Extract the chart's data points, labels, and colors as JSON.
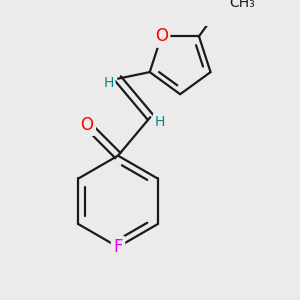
{
  "background_color": "#ebebeb",
  "bond_color": "#1a1a1a",
  "bond_width": 1.6,
  "atom_colors": {
    "O": "#ff0000",
    "F": "#ee00ee",
    "H": "#008888",
    "C": "#1a1a1a"
  },
  "font_size_atom": 12,
  "font_size_H": 10,
  "font_size_methyl": 10
}
